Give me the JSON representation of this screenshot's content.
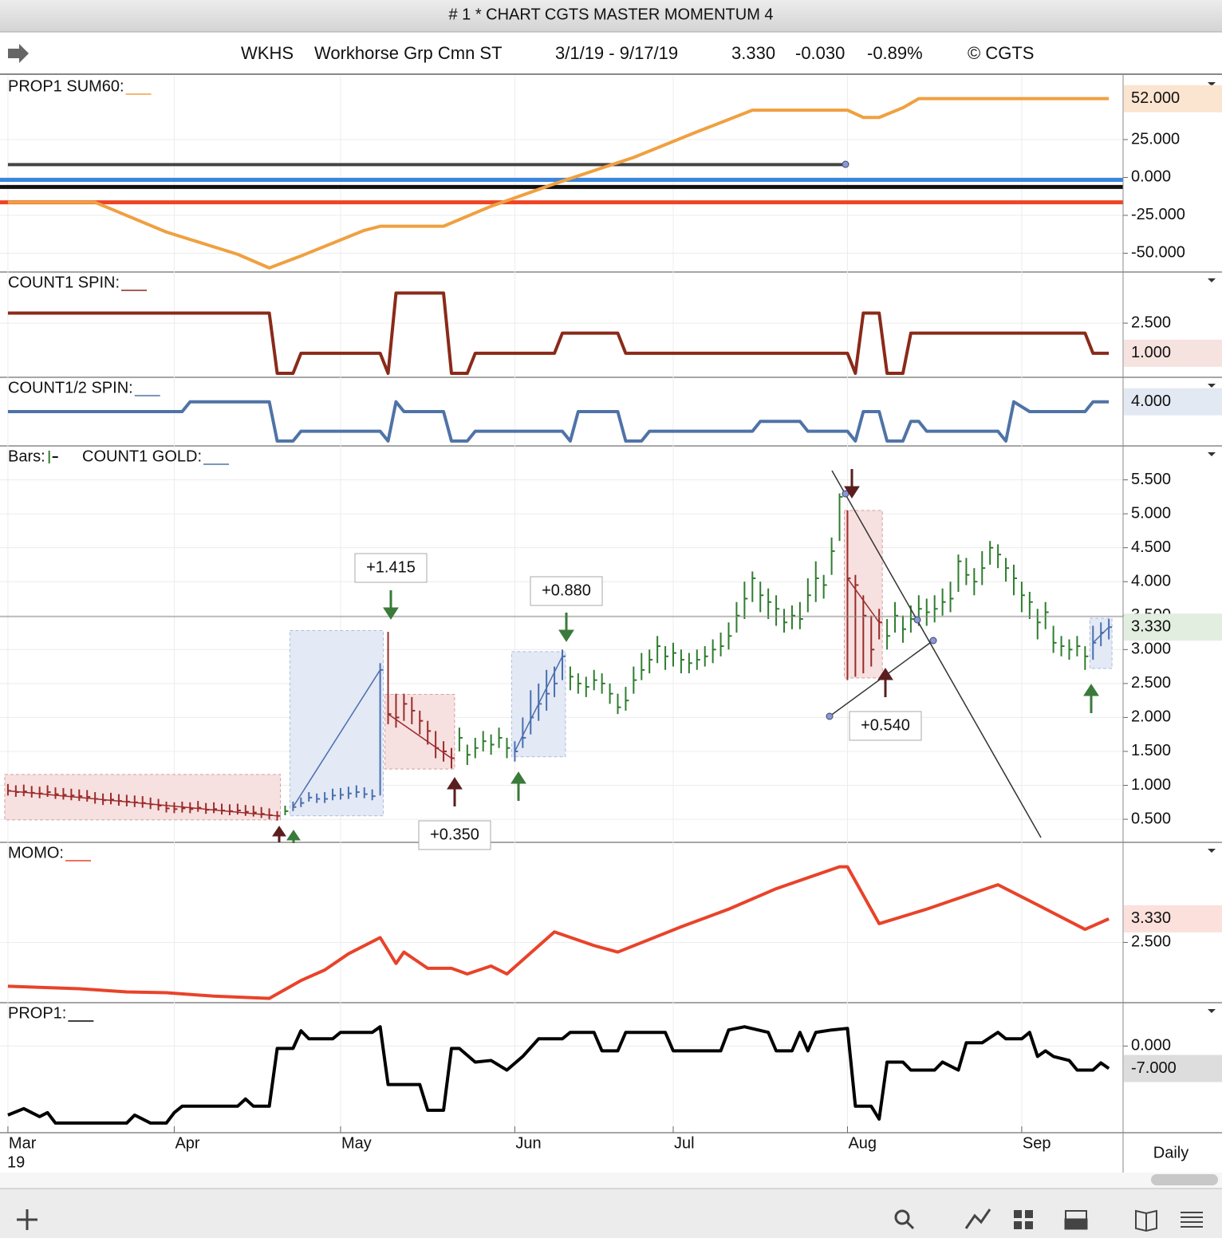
{
  "window": {
    "title": "# 1 * CHART CGTS MASTER MOMENTUM 4"
  },
  "header": {
    "symbol": "WKHS",
    "name": "Workhorse Grp Cmn ST",
    "range": "3/1/19 - 9/17/19",
    "last": "3.330",
    "change": "-0.030",
    "change_pct": "-0.89%",
    "copyright": "© CGTS"
  },
  "footer": {
    "period": "Daily"
  },
  "chart_data": [
    {
      "type": "line",
      "title": "PROP1 SUM60:",
      "ylim": [
        -62.4,
        67.1
      ],
      "grid": true,
      "yticks": [
        {
          "value": 25,
          "label": "25.000"
        },
        {
          "value": 0,
          "label": "0.000"
        },
        {
          "value": -25,
          "label": "-25.000"
        },
        {
          "value": -50,
          "label": "-50.000"
        }
      ],
      "current": {
        "value": 52,
        "label": "52.000",
        "color": "#c0642a",
        "background": "#fbe4d0"
      },
      "reference_lines": [
        {
          "value": -1.6,
          "color": "#3a86e0"
        },
        {
          "value": -6.3,
          "color": "#111111"
        },
        {
          "value": -16.4,
          "color": "#ee4422"
        }
      ],
      "series": [
        {
          "color": "#444444",
          "x": [
            0,
            106
          ],
          "values": [
            8.5,
            8.5
          ]
        },
        {
          "color": "#f0a040",
          "x": [
            0,
            11,
            20,
            29,
            33,
            37,
            45,
            47,
            55,
            61,
            69,
            79,
            87,
            94,
            106,
            108,
            110,
            113,
            115,
            139
          ],
          "values": [
            -16.4,
            -16.4,
            -36,
            -50.7,
            -59.7,
            -51.8,
            -34.9,
            -32.2,
            -32.2,
            -19,
            -4.2,
            13.2,
            30.1,
            44.4,
            44.4,
            39.6,
            39.6,
            46,
            52,
            52
          ]
        }
      ]
    },
    {
      "type": "line",
      "title": "COUNT1 SPIN:",
      "ylim": [
        -0.2,
        5.05
      ],
      "grid": true,
      "yticks": [
        {
          "value": 2.5,
          "label": "2.500"
        }
      ],
      "current": {
        "value": 1,
        "label": "1.000",
        "color": "#8a2a1a",
        "background": "#f6e2df"
      },
      "series": [
        {
          "color": "#8a2a1a",
          "x": [
            0,
            33,
            34,
            36,
            37,
            47,
            48,
            49,
            55,
            56,
            58,
            59,
            69,
            70,
            77,
            78,
            106,
            107,
            108,
            110,
            111,
            113,
            114,
            136,
            137,
            139
          ],
          "values": [
            3,
            3,
            0,
            0,
            1,
            1,
            0,
            4,
            4,
            0,
            0,
            1,
            1,
            2,
            2,
            1,
            1,
            0,
            3,
            3,
            0,
            0,
            2,
            2,
            1,
            1
          ]
        }
      ]
    },
    {
      "type": "line",
      "title": "COUNT1/2 SPIN:",
      "ylim": [
        -0.5,
        6.5
      ],
      "grid": true,
      "yticks": [],
      "current": {
        "value": 4,
        "label": "4.000",
        "color": "#4f73a6",
        "background": "#e3e9f2"
      },
      "series": [
        {
          "color": "#4f73a6",
          "x": [
            0,
            22,
            23,
            33,
            34,
            36,
            37,
            47,
            48,
            49,
            50,
            55,
            56,
            58,
            59,
            70,
            71,
            72,
            77,
            78,
            80,
            81,
            94,
            95,
            100,
            101,
            106,
            107,
            108,
            110,
            111,
            113,
            114,
            115,
            116,
            125,
            126,
            127,
            129,
            136,
            137,
            139
          ],
          "values": [
            3,
            3,
            4,
            4,
            0,
            0,
            1,
            1,
            0,
            4,
            3,
            3,
            0,
            0,
            1,
            1,
            0,
            3,
            3,
            0,
            0,
            1,
            1,
            2,
            2,
            1,
            1,
            0,
            3,
            3,
            0,
            0,
            2,
            2,
            1,
            1,
            0,
            4,
            3,
            3,
            4,
            4
          ]
        }
      ]
    },
    {
      "type": "ohlc",
      "title": "Bars:",
      "study_label": "COUNT1 GOLD:",
      "study_color": "#4f73a6",
      "bar_color": "#2e7d2e",
      "ylim": [
        0.16,
        6.0
      ],
      "grid": true,
      "yticks": [
        {
          "value": 0.5,
          "label": "0.500"
        },
        {
          "value": 1,
          "label": "1.000"
        },
        {
          "value": 1.5,
          "label": "1.500"
        },
        {
          "value": 2,
          "label": "2.000"
        },
        {
          "value": 2.5,
          "label": "2.500"
        },
        {
          "value": 3,
          "label": "3.000"
        },
        {
          "value": 3.5,
          "label": "3.500"
        },
        {
          "value": 4,
          "label": "4.000"
        },
        {
          "value": 4.5,
          "label": "4.500"
        },
        {
          "value": 5,
          "label": "5.000"
        },
        {
          "value": 5.5,
          "label": "5.500"
        }
      ],
      "current": {
        "value": 3.33,
        "label": "3.330",
        "color": "#2e6e2e",
        "background": "#e2efe0"
      },
      "values": [
        0.92,
        0.9,
        0.91,
        0.89,
        0.88,
        0.9,
        0.87,
        0.86,
        0.85,
        0.84,
        0.83,
        0.8,
        0.78,
        0.79,
        0.77,
        0.76,
        0.75,
        0.74,
        0.72,
        0.7,
        0.66,
        0.65,
        0.66,
        0.65,
        0.67,
        0.64,
        0.65,
        0.63,
        0.62,
        0.63,
        0.61,
        0.6,
        0.58,
        0.56,
        0.55,
        0.62,
        0.68,
        0.74,
        0.82,
        0.8,
        0.8,
        0.85,
        0.86,
        0.88,
        0.9,
        0.87,
        0.84,
        2.7,
        2.05,
        2.0,
        2.2,
        2.1,
        1.95,
        1.8,
        1.55,
        1.5,
        1.4,
        1.7,
        1.45,
        1.55,
        1.65,
        1.6,
        1.7,
        1.55,
        1.5,
        1.7,
        2.0,
        2.2,
        2.35,
        2.5,
        2.9,
        2.6,
        2.5,
        2.45,
        2.55,
        2.5,
        2.35,
        2.15,
        2.25,
        2.55,
        2.7,
        2.85,
        3.05,
        2.9,
        2.95,
        2.85,
        2.8,
        2.85,
        2.9,
        3.0,
        3.05,
        3.2,
        3.5,
        3.75,
        4.05,
        3.8,
        3.7,
        3.6,
        3.4,
        3.5,
        3.45,
        3.8,
        4.05,
        3.95,
        4.45,
        5.25,
        4.05,
        3.95,
        3.5,
        3.0,
        3.4,
        3.2,
        3.5,
        3.3,
        3.45,
        3.6,
        3.55,
        3.6,
        3.7,
        3.75,
        4.3,
        4.1,
        4.0,
        4.2,
        4.5,
        4.4,
        4.2,
        4.05,
        3.8,
        3.7,
        3.4,
        3.55,
        3.1,
        3.05,
        3.0,
        3.05,
        2.9,
        3.1,
        3.25,
        3.33
      ],
      "high": [
        1.02,
        1.0,
        1.01,
        0.99,
        0.98,
        1.0,
        0.97,
        0.96,
        0.95,
        0.94,
        0.93,
        0.9,
        0.88,
        0.89,
        0.87,
        0.86,
        0.85,
        0.84,
        0.82,
        0.8,
        0.76,
        0.75,
        0.76,
        0.75,
        0.77,
        0.74,
        0.75,
        0.73,
        0.72,
        0.73,
        0.71,
        0.7,
        0.68,
        0.66,
        0.62,
        0.7,
        0.76,
        0.82,
        0.9,
        0.88,
        0.9,
        0.95,
        0.96,
        0.98,
        1.0,
        0.97,
        0.94,
        2.8,
        3.26,
        2.35,
        2.35,
        2.3,
        2.1,
        1.95,
        1.8,
        1.65,
        1.55,
        1.85,
        1.6,
        1.7,
        1.8,
        1.75,
        1.85,
        1.7,
        1.65,
        2.0,
        2.4,
        2.5,
        2.7,
        2.75,
        3.0,
        2.75,
        2.65,
        2.6,
        2.7,
        2.65,
        2.5,
        2.35,
        2.45,
        2.75,
        2.95,
        3.0,
        3.2,
        3.05,
        3.1,
        3.0,
        2.95,
        3.0,
        3.05,
        3.15,
        3.25,
        3.4,
        3.7,
        4.0,
        4.15,
        4.0,
        3.9,
        3.8,
        3.6,
        3.65,
        3.7,
        4.05,
        4.3,
        4.1,
        4.65,
        5.3,
        5.05,
        4.1,
        3.8,
        3.5,
        3.6,
        3.45,
        3.7,
        3.5,
        3.65,
        3.8,
        3.75,
        3.8,
        3.9,
        4.0,
        4.4,
        4.35,
        4.2,
        4.45,
        4.6,
        4.55,
        4.35,
        4.25,
        4.0,
        3.85,
        3.6,
        3.7,
        3.35,
        3.2,
        3.15,
        3.2,
        3.05,
        3.35,
        3.4,
        3.45
      ],
      "low": [
        0.85,
        0.83,
        0.84,
        0.82,
        0.81,
        0.83,
        0.8,
        0.79,
        0.78,
        0.77,
        0.76,
        0.73,
        0.71,
        0.72,
        0.7,
        0.69,
        0.68,
        0.67,
        0.65,
        0.63,
        0.6,
        0.59,
        0.6,
        0.59,
        0.61,
        0.58,
        0.59,
        0.57,
        0.56,
        0.57,
        0.55,
        0.54,
        0.52,
        0.5,
        0.48,
        0.56,
        0.62,
        0.68,
        0.76,
        0.74,
        0.74,
        0.78,
        0.79,
        0.8,
        0.82,
        0.81,
        0.78,
        0.85,
        1.9,
        1.85,
        1.95,
        1.9,
        1.75,
        1.6,
        1.4,
        1.35,
        1.25,
        1.5,
        1.3,
        1.4,
        1.5,
        1.45,
        1.55,
        1.4,
        1.35,
        1.55,
        1.75,
        1.95,
        2.1,
        2.3,
        2.55,
        2.4,
        2.35,
        2.3,
        2.4,
        2.35,
        2.2,
        2.05,
        2.1,
        2.35,
        2.55,
        2.65,
        2.8,
        2.7,
        2.75,
        2.65,
        2.65,
        2.7,
        2.75,
        2.8,
        2.9,
        3.0,
        3.25,
        3.45,
        3.7,
        3.55,
        3.45,
        3.35,
        3.25,
        3.3,
        3.3,
        3.55,
        3.7,
        3.75,
        4.1,
        4.6,
        2.55,
        2.6,
        2.65,
        2.75,
        3.15,
        3.0,
        3.25,
        3.1,
        3.25,
        3.35,
        3.35,
        3.4,
        3.5,
        3.55,
        3.85,
        3.95,
        3.8,
        3.95,
        4.25,
        4.2,
        4.0,
        3.8,
        3.55,
        3.45,
        3.15,
        3.3,
        2.95,
        2.9,
        2.85,
        2.9,
        2.7,
        2.85,
        3.05,
        3.15
      ],
      "boxes": [
        {
          "x": [
            0,
            34
          ],
          "range": [
            0.49,
            1.16
          ],
          "fill": "#f7e0e0",
          "color": "#9b2b2b"
        },
        {
          "x": [
            36,
            47
          ],
          "range": [
            0.55,
            3.28
          ],
          "fill": "#e3e9f5",
          "color": "#4a6fae"
        },
        {
          "x": [
            48,
            56
          ],
          "range": [
            1.24,
            2.34
          ],
          "fill": "#f7e0e0",
          "color": "#9b2b2b"
        },
        {
          "x": [
            64,
            70
          ],
          "range": [
            1.42,
            2.97
          ],
          "fill": "#e3e9f5",
          "color": "#4a6fae"
        },
        {
          "x": [
            106,
            110
          ],
          "range": [
            2.58,
            5.05
          ],
          "fill": "#f7e0e0",
          "color": "#9b2b2b"
        },
        {
          "x": [
            137,
            139
          ],
          "range": [
            2.72,
            3.46
          ],
          "fill": "#e3e9f5",
          "color": "#4a6fae"
        }
      ],
      "annotations": [
        {
          "text": "+1.415",
          "color": "#3a8a3a"
        },
        {
          "text": "+0.880",
          "color": "#3a8a3a"
        },
        {
          "text": "+0.350",
          "color": "#9b2b2b"
        },
        {
          "text": "+0.540",
          "color": "#9b2b2b"
        }
      ]
    },
    {
      "type": "line",
      "title": "MOMO:",
      "ylim": [
        0.38,
        6.02
      ],
      "grid": true,
      "yticks": [
        {
          "value": 2.5,
          "label": "2.500"
        }
      ],
      "current": {
        "value": 3.33,
        "label": "3.330",
        "color": "#c0392b",
        "background": "#fbe0dc"
      },
      "series": [
        {
          "color": "#e8432a",
          "x": [
            0,
            9,
            15,
            20,
            26,
            33,
            37,
            40,
            43,
            47,
            49,
            50,
            53,
            56,
            58,
            61,
            63,
            69,
            74,
            77,
            85,
            91,
            97,
            105,
            106,
            110,
            116,
            125,
            130,
            136,
            139
          ],
          "values": [
            0.96,
            0.87,
            0.76,
            0.73,
            0.61,
            0.53,
            1.16,
            1.53,
            2.1,
            2.67,
            1.76,
            2.16,
            1.59,
            1.59,
            1.39,
            1.67,
            1.39,
            2.87,
            2.39,
            2.16,
            3.05,
            3.67,
            4.39,
            5.16,
            5.16,
            3.16,
            3.67,
            4.53,
            3.82,
            2.96,
            3.33
          ]
        }
      ]
    },
    {
      "type": "line",
      "title": "PROP1:",
      "ylim": [
        -27,
        13.5
      ],
      "grid": true,
      "yticks": [
        {
          "value": 0,
          "label": "0.000"
        }
      ],
      "current": {
        "value": -7,
        "label": "-7.000",
        "color": "#111111",
        "background": "#dddddd"
      },
      "xlim": [
        -1,
        140.8
      ],
      "xticks": [
        {
          "value": 0,
          "label": "Mar"
        },
        {
          "value": 21,
          "label": "Apr"
        },
        {
          "value": 42,
          "label": "May"
        },
        {
          "value": 64,
          "label": "Jun"
        },
        {
          "value": 84,
          "label": "Jul"
        },
        {
          "value": 106,
          "label": "Aug"
        },
        {
          "value": 128,
          "label": "Sep"
        }
      ],
      "year_label": "19",
      "series": [
        {
          "color": "#000000",
          "x": [
            0,
            2,
            4,
            5,
            6,
            15,
            16,
            18,
            20,
            21,
            22,
            29,
            30,
            31,
            33,
            34,
            36,
            37,
            38,
            41,
            42,
            46,
            47,
            48,
            52,
            53,
            55,
            56,
            57,
            59,
            61,
            63,
            65,
            67,
            70,
            71,
            74,
            75,
            77,
            78,
            83,
            84,
            90,
            91,
            93,
            96,
            97,
            99,
            100,
            101,
            102,
            104,
            106,
            107,
            109,
            110,
            111,
            113,
            114,
            117,
            118,
            120,
            121,
            123,
            125,
            126,
            128,
            129,
            130,
            131,
            132,
            134,
            135,
            137,
            138,
            139
          ],
          "values": [
            -21.5,
            -19.5,
            -22,
            -20.75,
            -24,
            -24,
            -21.5,
            -24,
            -24,
            -20.75,
            -18.75,
            -18.75,
            -16.5,
            -18.75,
            -18.75,
            -0.75,
            -0.75,
            4.75,
            2.25,
            2.25,
            4.25,
            4.25,
            6,
            -12,
            -12,
            -20,
            -20,
            -0.75,
            -0.75,
            -5,
            -4.5,
            -7.5,
            -3.25,
            2.25,
            2.25,
            4.25,
            4.25,
            -1.5,
            -1.5,
            4.25,
            4.25,
            -1.5,
            -1.5,
            5,
            6,
            4.25,
            -1.5,
            -1.5,
            4.25,
            -1.5,
            4.25,
            5,
            5.5,
            -18.75,
            -18.75,
            -22.75,
            -5,
            -5,
            -7.5,
            -7.5,
            -5,
            -7.5,
            1,
            1,
            4.25,
            2.25,
            2.25,
            4.25,
            -3.25,
            -1.5,
            -3.25,
            -4.5,
            -7.5,
            -7.5,
            -5.25,
            -7
          ]
        }
      ]
    }
  ]
}
